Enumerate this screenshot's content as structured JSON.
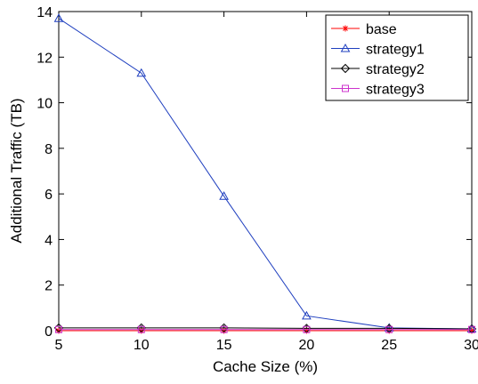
{
  "chart_data": {
    "type": "line",
    "xlabel": "Cache Size (%)",
    "ylabel": "Additional Traffic (TB)",
    "xlim": [
      5,
      30
    ],
    "ylim": [
      0,
      14
    ],
    "xticks": [
      "5",
      "10",
      "15",
      "20",
      "25",
      "30"
    ],
    "yticks": [
      "0",
      "2",
      "4",
      "6",
      "8",
      "10",
      "12",
      "14"
    ],
    "x": [
      5,
      10,
      15,
      20,
      25,
      30
    ],
    "grid": false,
    "legend_position": "top-right",
    "series": [
      {
        "name": "base",
        "values": [
          0,
          0,
          0,
          0,
          0,
          0
        ],
        "color": "#ff0000",
        "marker": "star"
      },
      {
        "name": "strategy1",
        "values": [
          13.7,
          11.3,
          5.9,
          0.65,
          0.12,
          0.08
        ],
        "color": "#1f3fbf",
        "marker": "triangle"
      },
      {
        "name": "strategy2",
        "values": [
          0.12,
          0.12,
          0.12,
          0.1,
          0.1,
          0.08
        ],
        "color": "#000000",
        "marker": "diamond"
      },
      {
        "name": "strategy3",
        "values": [
          0.05,
          0.05,
          0.05,
          0.05,
          0.05,
          0.05
        ],
        "color": "#cc33cc",
        "marker": "square"
      }
    ]
  }
}
